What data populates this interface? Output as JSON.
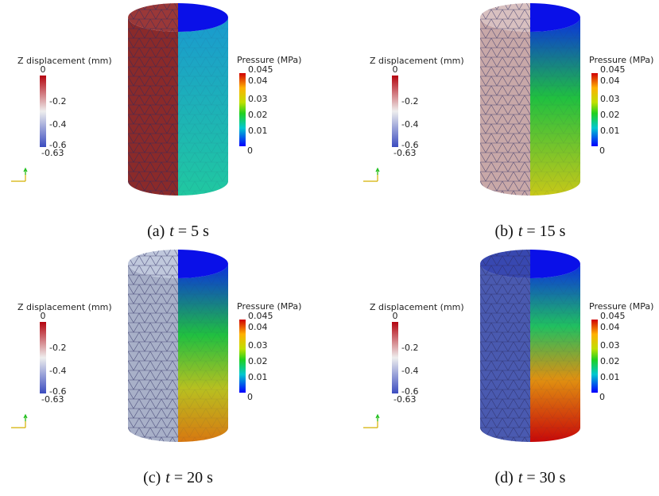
{
  "legends": {
    "displacement": {
      "title": "Z displacement (mm)",
      "ticks": [
        "0",
        "-0.2",
        "-0.4",
        "-0.6",
        "-0.63"
      ]
    },
    "pressure": {
      "title": "Pressure (MPa)",
      "ticks": [
        "0.045",
        "0.04",
        "0.03",
        "0.02",
        "0.01",
        "0"
      ]
    }
  },
  "panels": [
    {
      "tag": "(a)",
      "symbol": "t",
      "value": "= 5 s"
    },
    {
      "tag": "(b)",
      "symbol": "t",
      "value": "= 15 s"
    },
    {
      "tag": "(c)",
      "symbol": "t",
      "value": "= 20 s"
    },
    {
      "tag": "(d)",
      "symbol": "t",
      "value": "= 30 s"
    }
  ]
}
